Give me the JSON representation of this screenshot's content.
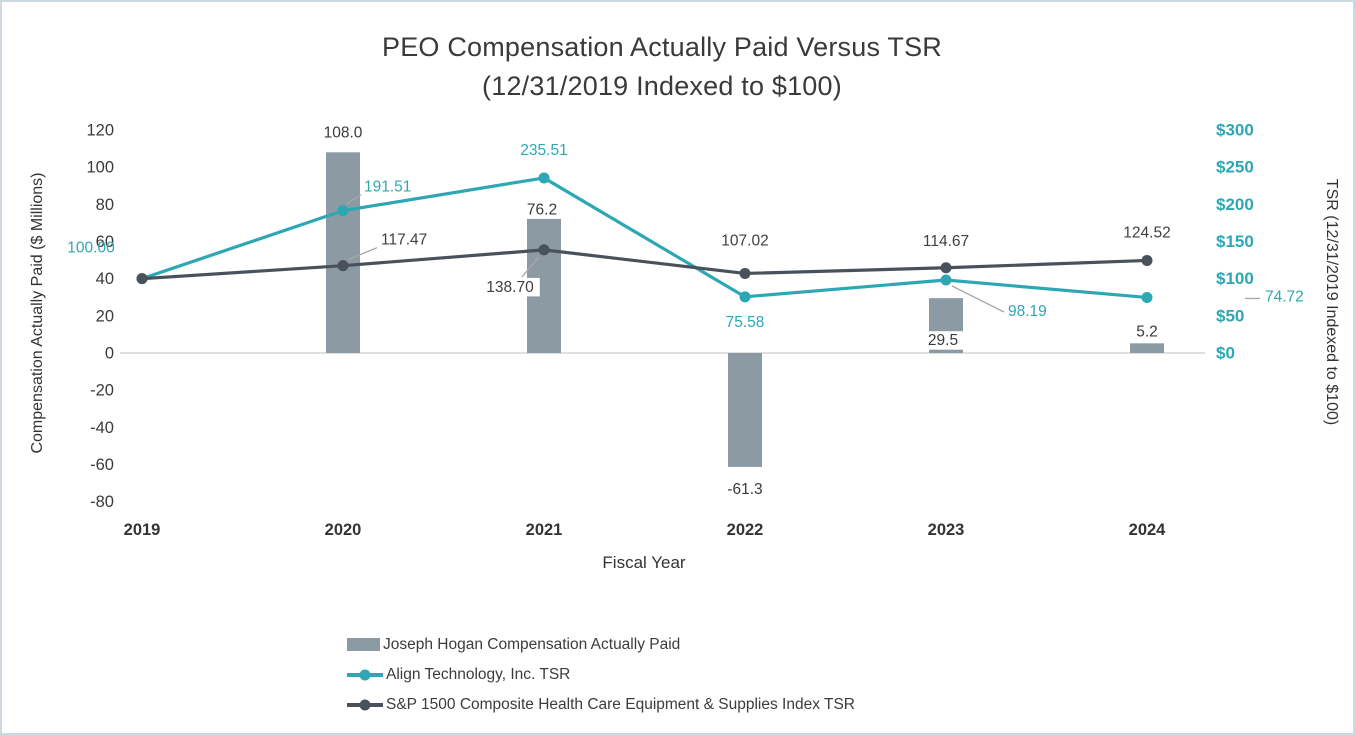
{
  "frame": {
    "background": "#FFFFFF",
    "border_color": "#CDD9DE"
  },
  "title": {
    "line1": "PEO Compensation Actually Paid Versus TSR",
    "line2": "(12/31/2019 Indexed to $100)"
  },
  "chart_data": {
    "type": "combo-bar-line",
    "categories": [
      "2019",
      "2020",
      "2021",
      "2022",
      "2023",
      "2024"
    ],
    "x_axis_title": "Fiscal Year",
    "left_axis": {
      "title": "Compensation Actually Paid ($ Millions)",
      "ticks": [
        120,
        100,
        80,
        60,
        40,
        20,
        0,
        -20,
        -40,
        -60,
        -80
      ],
      "range": [
        -80,
        120
      ]
    },
    "right_axis": {
      "title": "TSR (12/31/2019 Indexed to $100)",
      "ticks": [
        {
          "value": 300,
          "label": "$300"
        },
        {
          "value": 250,
          "label": "$250"
        },
        {
          "value": 200,
          "label": "$200"
        },
        {
          "value": 150,
          "label": "$150"
        },
        {
          "value": 100,
          "label": "$100"
        },
        {
          "value": 50,
          "label": "$50"
        },
        {
          "value": 0,
          "label": "$0"
        }
      ],
      "range": [
        0,
        300
      ]
    },
    "grid": "zero-line-only",
    "legend_position": "bottom-left",
    "series": [
      {
        "name": "Joseph Hogan Compensation Actually Paid",
        "type": "bar",
        "axis": "left",
        "color": "#8C9AA3",
        "label_color": "#3A3A3A",
        "values": [
          null,
          108.0,
          76.2,
          -61.3,
          29.5,
          5.2
        ],
        "labels": [
          "",
          "108.0",
          "76.2",
          "-61.3",
          "29.5",
          "5.2"
        ],
        "label_pos": [
          null,
          {
            "dx": 0,
            "dy": -15,
            "anchor": "middle"
          },
          {
            "dx": -2,
            "dy": 3,
            "anchor": "middle",
            "bg": true
          },
          {
            "dx": 0,
            "dy": 27,
            "anchor": "middle"
          },
          {
            "dx": -3,
            "dy": 47,
            "anchor": "middle",
            "bg": true
          },
          {
            "dx": 0,
            "dy": -7,
            "anchor": "middle"
          }
        ]
      },
      {
        "name": "Align Technology, Inc. TSR",
        "type": "line",
        "axis": "right",
        "color": "#2EA7B5",
        "label_color": "#2EA7B5",
        "values": [
          100.0,
          191.51,
          235.51,
          75.58,
          98.19,
          74.72
        ],
        "labels": [
          "100.00",
          "191.51",
          "235.51",
          "75.58",
          "98.19",
          "74.72"
        ],
        "label_pos": [
          {
            "dx": -51,
            "dy": -26,
            "anchor": "middle"
          },
          {
            "dx": 21,
            "dy": -19,
            "anchor": "start",
            "leader": [
              4,
              -7,
              18,
              -16
            ]
          },
          {
            "dx": 0,
            "dy": -23,
            "anchor": "middle"
          },
          {
            "dx": 0,
            "dy": 30,
            "anchor": "middle"
          },
          {
            "dx": 62,
            "dy": 36,
            "anchor": "start",
            "leader": [
              6,
              6,
              58,
              32
            ]
          },
          {
            "dx": 118,
            "dy": 4,
            "anchor": "start",
            "leader": [
              98,
              1,
              113,
              1
            ]
          }
        ]
      },
      {
        "name": "S&P 1500 Composite Health Care Equipment & Supplies Index TSR",
        "type": "line",
        "axis": "right",
        "color": "#49515B",
        "label_color": "#404040",
        "values": [
          100.0,
          117.47,
          138.7,
          107.02,
          114.67,
          124.52
        ],
        "labels": [
          "",
          "117.47",
          "138.70",
          "107.02",
          "114.67",
          "124.52"
        ],
        "label_pos": [
          null,
          {
            "dx": 38,
            "dy": -21,
            "anchor": "start",
            "leader": [
              5,
              -6,
              34,
              -18
            ]
          },
          {
            "dx": -34,
            "dy": 42,
            "anchor": "middle",
            "bg": true,
            "leader": [
              -5,
              7,
              -22,
              27
            ]
          },
          {
            "dx": 0,
            "dy": -28,
            "anchor": "middle"
          },
          {
            "dx": 0,
            "dy": -22,
            "anchor": "middle"
          },
          {
            "dx": 0,
            "dy": -23,
            "anchor": "middle"
          }
        ]
      }
    ],
    "colors": {
      "teal": "#2EA7B5",
      "slate": "#49515B",
      "bar": "#8C9AA3",
      "grid": "#D6D6D6",
      "leader": "#A6A6A6",
      "axis_text": "#3A3A3A"
    }
  }
}
